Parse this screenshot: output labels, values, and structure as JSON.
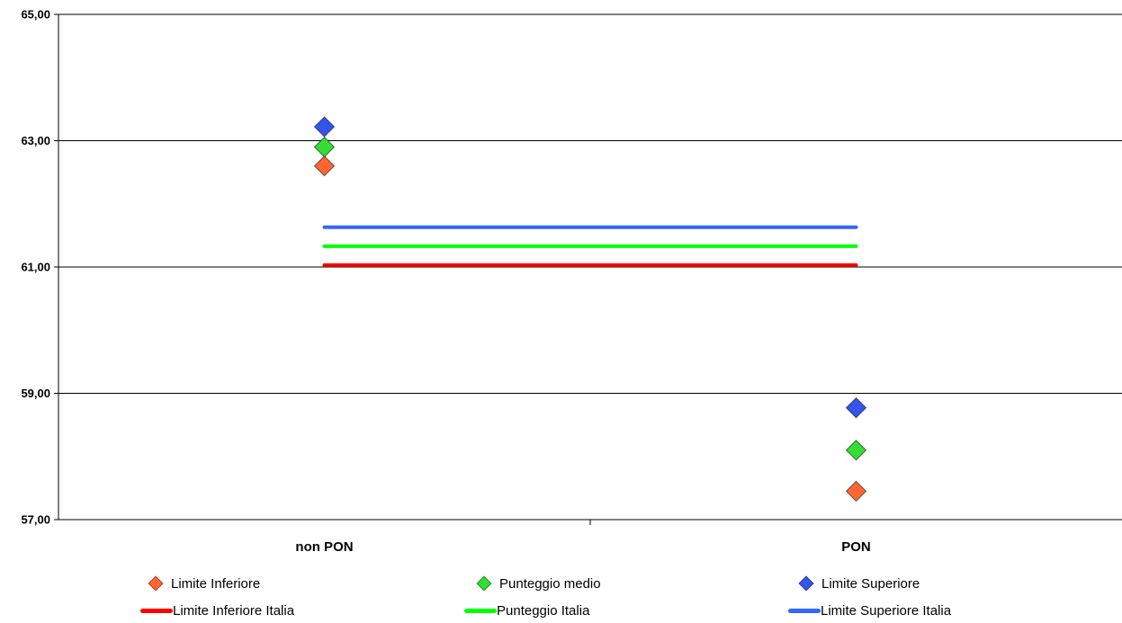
{
  "chart_data": {
    "type": "scatter",
    "categories": [
      "non PON",
      "PON"
    ],
    "ylim": [
      57,
      65
    ],
    "yticks": [
      "57,00",
      "59,00",
      "61,00",
      "63,00",
      "65,00"
    ],
    "ytick_values": [
      57,
      59,
      61,
      63,
      65
    ],
    "grid": true,
    "legend_position": "bottom",
    "series": [
      {
        "name": "Limite Inferiore",
        "kind": "marker",
        "color": "#FF6633",
        "values": [
          62.6,
          57.45
        ]
      },
      {
        "name": "Punteggio medio",
        "kind": "marker",
        "color": "#33DD33",
        "values": [
          62.9,
          58.1
        ]
      },
      {
        "name": "Limite Superiore",
        "kind": "marker",
        "color": "#3355EE",
        "values": [
          63.22,
          58.77
        ]
      },
      {
        "name": "Limite Inferiore Italia",
        "kind": "line",
        "color": "#FF0000",
        "values": [
          61.03,
          61.03
        ]
      },
      {
        "name": "Punteggio Italia",
        "kind": "line",
        "color": "#00FF00",
        "values": [
          61.33,
          61.33
        ]
      },
      {
        "name": "Limite Superiore Italia",
        "kind": "line",
        "color": "#3366FF",
        "values": [
          61.63,
          61.63
        ]
      }
    ]
  },
  "legend": {
    "limite_inferiore": "Limite Inferiore",
    "punteggio_medio": "Punteggio medio",
    "limite_superiore": "Limite Superiore",
    "limite_inferiore_italia": "Limite Inferiore Italia",
    "punteggio_italia": "Punteggio Italia",
    "limite_superiore_italia": "Limite Superiore Italia"
  },
  "colors": {
    "limite_inferiore": "#FF6633",
    "punteggio_medio": "#33DD33",
    "limite_superiore": "#3355EE",
    "limite_inferiore_italia": "#FF0000",
    "punteggio_italia": "#00FF00",
    "limite_superiore_italia": "#3366FF"
  }
}
